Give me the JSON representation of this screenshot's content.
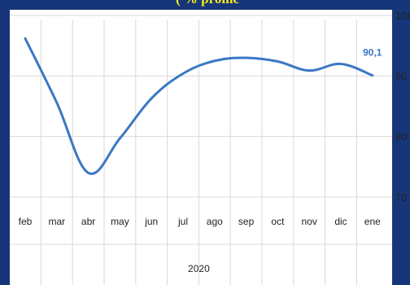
{
  "title_fragment": "( % prome",
  "chart_data": {
    "type": "line",
    "categories": [
      "feb",
      "mar",
      "abr",
      "may",
      "jun",
      "jul",
      "ago",
      "sep",
      "oct",
      "nov",
      "dic",
      "ene"
    ],
    "series": [
      {
        "values": [
          96.2,
          85.6,
          74.0,
          79.7,
          86.3,
          90.4,
          92.5,
          93.0,
          92.4,
          90.9,
          92.0,
          90.1
        ]
      }
    ],
    "end_label": "90,1",
    "xlabel": "2020",
    "ylim": [
      70,
      100
    ],
    "yticks": [
      70,
      80,
      90,
      100
    ],
    "grid": true,
    "line_color": "#3a78c4",
    "grid_color": "#d8d8d8"
  }
}
